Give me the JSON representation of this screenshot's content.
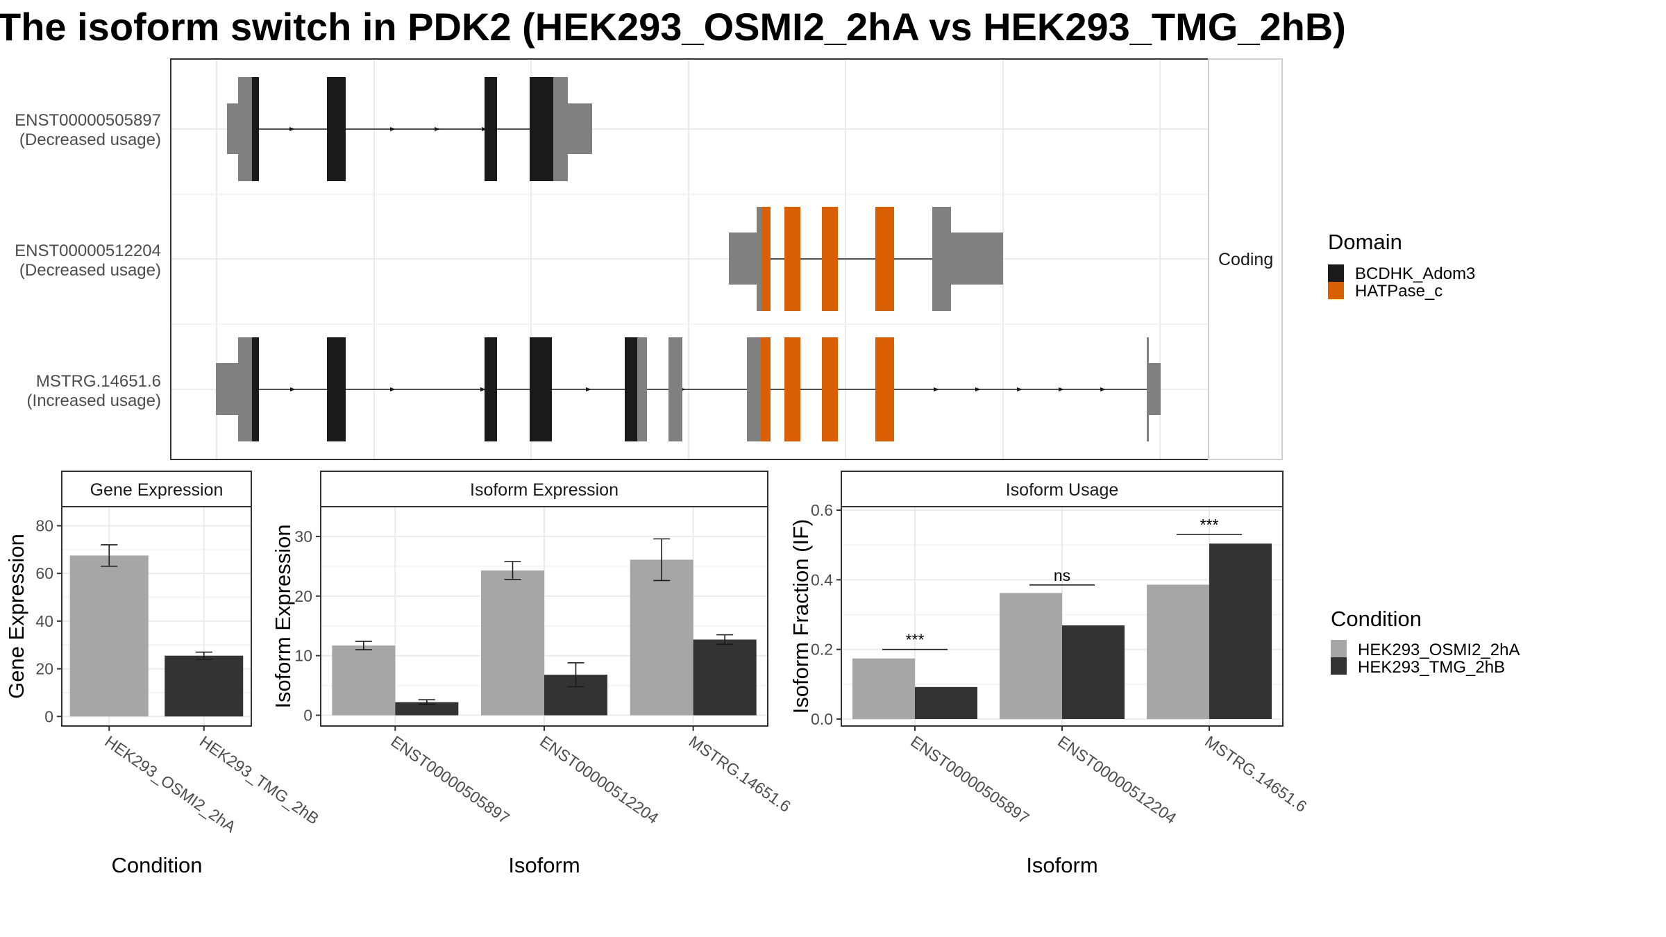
{
  "title": "The isoform switch in PDK2 (HEK293_OSMI2_2hA vs HEK293_TMG_2hB)",
  "structure": {
    "strip_label": "Coding",
    "isoforms": [
      {
        "id": "ENST00000505897",
        "usage": "(Decreased usage)"
      },
      {
        "id": "ENST00000512204",
        "usage": "(Decreased usage)"
      },
      {
        "id": "MSTRG.14651.6",
        "usage": "(Increased usage)"
      }
    ]
  },
  "domain_legend": {
    "title": "Domain",
    "items": [
      {
        "label": "BCDHK_Adom3",
        "color": "#1a1a1a"
      },
      {
        "label": "HATPase_c",
        "color": "#d95f02"
      }
    ]
  },
  "condition_legend": {
    "title": "Condition",
    "items": [
      {
        "label": "HEK293_OSMI2_2hA",
        "color": "#a6a6a6"
      },
      {
        "label": "HEK293_TMG_2hB",
        "color": "#333333"
      }
    ]
  },
  "chart_data": [
    {
      "type": "bar",
      "title": "Gene Expression",
      "xlabel": "Condition",
      "ylabel": "Gene Expression",
      "categories": [
        "HEK293_OSMI2_2hA",
        "HEK293_TMG_2hB"
      ],
      "values": [
        67.5,
        25.5
      ],
      "error_low": [
        63,
        24
      ],
      "error_high": [
        72,
        27
      ],
      "ylim": [
        -4,
        88
      ],
      "yticks": [
        0,
        20,
        40,
        60,
        80
      ]
    },
    {
      "type": "bar",
      "title": "Isoform Expression",
      "xlabel": "Isoform",
      "ylabel": "Isoform Expression",
      "categories": [
        "ENST00000505897",
        "ENST00000512204",
        "MSTRG.14651.6"
      ],
      "series": [
        {
          "name": "HEK293_OSMI2_2hA",
          "values": [
            11.7,
            24.3,
            26.1
          ],
          "error_low": [
            11,
            22.8,
            22.6
          ],
          "error_high": [
            12.4,
            25.8,
            29.6
          ]
        },
        {
          "name": "HEK293_TMG_2hB",
          "values": [
            2.2,
            6.8,
            12.7
          ],
          "error_low": [
            1.8,
            4.8,
            11.9
          ],
          "error_high": [
            2.6,
            8.8,
            13.5
          ]
        }
      ],
      "ylim": [
        -1.8,
        35
      ],
      "yticks": [
        0,
        10,
        20,
        30
      ]
    },
    {
      "type": "bar",
      "title": "Isoform Usage",
      "xlabel": "Isoform",
      "ylabel": "Isoform Fraction (IF)",
      "categories": [
        "ENST00000505897",
        "ENST00000512204",
        "MSTRG.14651.6"
      ],
      "series": [
        {
          "name": "HEK293_OSMI2_2hA",
          "values": [
            0.174,
            0.362,
            0.386
          ]
        },
        {
          "name": "HEK293_TMG_2hB",
          "values": [
            0.092,
            0.269,
            0.504
          ]
        }
      ],
      "significance": [
        "***",
        "ns",
        "***"
      ],
      "significance_y": [
        0.2,
        0.385,
        0.53
      ],
      "ylim": [
        -0.02,
        0.61
      ],
      "yticks": [
        "0.0",
        "0.2",
        "0.4",
        "0.6"
      ]
    }
  ]
}
